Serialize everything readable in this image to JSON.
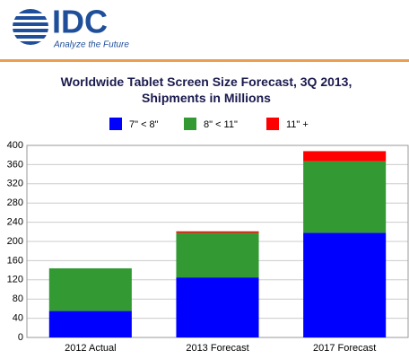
{
  "header": {
    "logo": "IDC",
    "tagline": "Analyze the Future"
  },
  "chart_data": {
    "type": "stacked_bar",
    "title": "Worldwide Tablet Screen Size Forecast, 3Q 2013, Shipments in Millions",
    "categories": [
      "2012 Actual",
      "2013 Forecast",
      "2017 Forecast"
    ],
    "series": [
      {
        "name": "7\" < 8\"",
        "color": "#0000ff",
        "values": [
          55,
          125,
          218
        ]
      },
      {
        "name": "8\" < 11\"",
        "color": "#339933",
        "values": [
          89,
          93,
          149
        ]
      },
      {
        "name": "11\" +",
        "color": "#ff0000",
        "values": [
          0,
          3,
          21
        ]
      }
    ],
    "ylim": [
      0,
      400
    ],
    "yticks": [
      0,
      40,
      80,
      120,
      160,
      200,
      240,
      280,
      320,
      360,
      400
    ],
    "grid": true,
    "legend": "top"
  }
}
